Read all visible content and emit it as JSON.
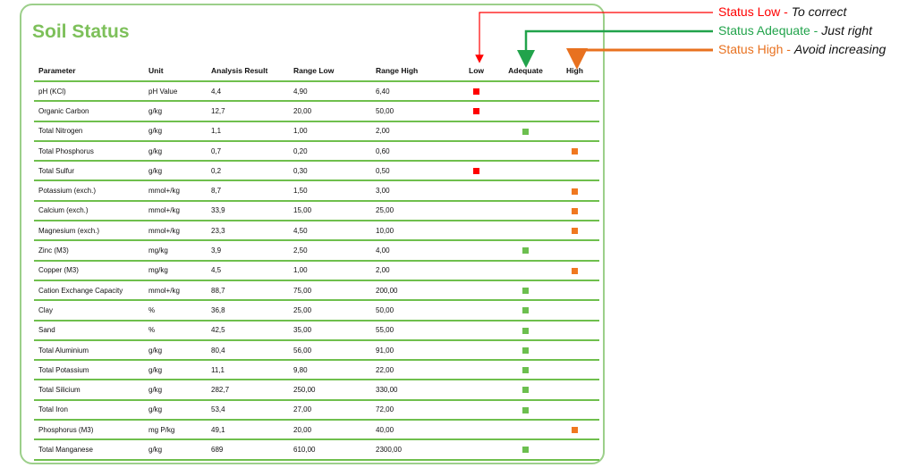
{
  "title": "Soil Status",
  "columns": [
    "Parameter",
    "Unit",
    "Analysis Result",
    "Range Low",
    "Range High",
    "Low",
    "Adequate",
    "High"
  ],
  "colors": {
    "low": "#ff0000",
    "adequate": "#6cbf4f",
    "high": "#f07820",
    "border": "#6fbf4d",
    "title": "#7dc05a"
  },
  "rows": [
    {
      "parameter": "pH (KCl)",
      "unit": "pH Value",
      "result": "4,4",
      "range_low": "4,90",
      "range_high": "6,40",
      "status": "low"
    },
    {
      "parameter": "Organic Carbon",
      "unit": "g/kg",
      "result": "12,7",
      "range_low": "20,00",
      "range_high": "50,00",
      "status": "low"
    },
    {
      "parameter": "Total Nitrogen",
      "unit": "g/kg",
      "result": "1,1",
      "range_low": "1,00",
      "range_high": "2,00",
      "status": "adequate"
    },
    {
      "parameter": "Total Phosphorus",
      "unit": "g/kg",
      "result": "0,7",
      "range_low": "0,20",
      "range_high": "0,60",
      "status": "high"
    },
    {
      "parameter": "Total Sulfur",
      "unit": "g/kg",
      "result": "0,2",
      "range_low": "0,30",
      "range_high": "0,50",
      "status": "low"
    },
    {
      "parameter": "Potassium (exch.)",
      "unit": "mmol+/kg",
      "result": "8,7",
      "range_low": "1,50",
      "range_high": "3,00",
      "status": "high"
    },
    {
      "parameter": "Calcium (exch.)",
      "unit": "mmol+/kg",
      "result": "33,9",
      "range_low": "15,00",
      "range_high": "25,00",
      "status": "high"
    },
    {
      "parameter": "Magnesium (exch.)",
      "unit": "mmol+/kg",
      "result": "23,3",
      "range_low": "4,50",
      "range_high": "10,00",
      "status": "high"
    },
    {
      "parameter": "Zinc (M3)",
      "unit": "mg/kg",
      "result": "3,9",
      "range_low": "2,50",
      "range_high": "4,00",
      "status": "adequate"
    },
    {
      "parameter": "Copper (M3)",
      "unit": "mg/kg",
      "result": "4,5",
      "range_low": "1,00",
      "range_high": "2,00",
      "status": "high"
    },
    {
      "parameter": "Cation Exchange Capacity",
      "unit": "mmol+/kg",
      "result": "88,7",
      "range_low": "75,00",
      "range_high": "200,00",
      "status": "adequate"
    },
    {
      "parameter": "Clay",
      "unit": "%",
      "result": "36,8",
      "range_low": "25,00",
      "range_high": "50,00",
      "status": "adequate"
    },
    {
      "parameter": "Sand",
      "unit": "%",
      "result": "42,5",
      "range_low": "35,00",
      "range_high": "55,00",
      "status": "adequate"
    },
    {
      "parameter": "Total Aluminium",
      "unit": "g/kg",
      "result": "80,4",
      "range_low": "56,00",
      "range_high": "91,00",
      "status": "adequate"
    },
    {
      "parameter": "Total Potassium",
      "unit": "g/kg",
      "result": "11,1",
      "range_low": "9,80",
      "range_high": "22,00",
      "status": "adequate"
    },
    {
      "parameter": "Total Silicium",
      "unit": "g/kg",
      "result": "282,7",
      "range_low": "250,00",
      "range_high": "330,00",
      "status": "adequate"
    },
    {
      "parameter": "Total Iron",
      "unit": "g/kg",
      "result": "53,4",
      "range_low": "27,00",
      "range_high": "72,00",
      "status": "adequate"
    },
    {
      "parameter": "Phosphorus (M3)",
      "unit": "mg P/kg",
      "result": "49,1",
      "range_low": "20,00",
      "range_high": "40,00",
      "status": "high"
    },
    {
      "parameter": "Total Manganese",
      "unit": "g/kg",
      "result": "689",
      "range_low": "610,00",
      "range_high": "2300,00",
      "status": "adequate"
    }
  ],
  "legend": [
    {
      "key": "low",
      "label": "Status Low",
      "separator": " - ",
      "note": "To correct"
    },
    {
      "key": "adequate",
      "label": "Status Adequate",
      "separator": " - ",
      "note": "Just right"
    },
    {
      "key": "high",
      "label": "Status High",
      "separator": " - ",
      "note": "Avoid increasing"
    }
  ]
}
